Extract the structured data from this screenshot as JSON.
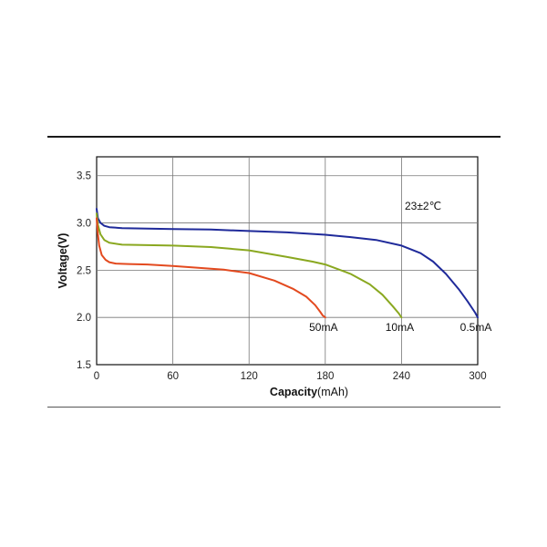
{
  "chart_data": {
    "type": "line",
    "xlabel_bold": "Capacity",
    "xlabel_unit": "(mAh)",
    "ylabel": "Voltage(V)",
    "xlim": [
      0,
      300
    ],
    "ylim": [
      1.5,
      3.7
    ],
    "xticks": [
      0,
      60,
      120,
      180,
      240,
      300
    ],
    "yticks": [
      1.5,
      2.0,
      2.5,
      3.0,
      3.5
    ],
    "xtick_labels": [
      "0",
      "60",
      "120",
      "180",
      "240",
      "300"
    ],
    "ytick_labels": [
      "1.5",
      "2.0",
      "2.5",
      "3.0",
      "3.5"
    ],
    "grid": true,
    "annotation": "23±2℃",
    "series": [
      {
        "name": "0.5mA",
        "color": "#1f2a9a",
        "x": [
          0,
          1,
          3,
          6,
          10,
          20,
          40,
          60,
          90,
          120,
          150,
          180,
          200,
          220,
          240,
          255,
          265,
          275,
          285,
          292,
          298,
          300
        ],
        "y": [
          3.15,
          3.05,
          3.0,
          2.97,
          2.955,
          2.945,
          2.94,
          2.935,
          2.93,
          2.915,
          2.9,
          2.875,
          2.85,
          2.82,
          2.76,
          2.68,
          2.59,
          2.46,
          2.3,
          2.17,
          2.05,
          2.0
        ]
      },
      {
        "name": "10mA",
        "color": "#8aa820",
        "x": [
          0,
          1,
          3,
          6,
          10,
          20,
          40,
          60,
          90,
          120,
          150,
          170,
          180,
          200,
          215,
          225,
          233,
          238,
          240
        ],
        "y": [
          3.1,
          2.98,
          2.88,
          2.82,
          2.79,
          2.77,
          2.765,
          2.76,
          2.745,
          2.71,
          2.64,
          2.59,
          2.56,
          2.46,
          2.35,
          2.24,
          2.12,
          2.04,
          2.0
        ]
      },
      {
        "name": "50mA",
        "color": "#e34a1f",
        "x": [
          0,
          1,
          2,
          4,
          7,
          10,
          15,
          25,
          40,
          60,
          80,
          100,
          120,
          140,
          155,
          165,
          172,
          176,
          178,
          180
        ],
        "y": [
          3.05,
          2.88,
          2.76,
          2.66,
          2.61,
          2.585,
          2.57,
          2.565,
          2.56,
          2.545,
          2.525,
          2.505,
          2.47,
          2.39,
          2.3,
          2.22,
          2.13,
          2.06,
          2.02,
          2.0
        ]
      }
    ]
  }
}
